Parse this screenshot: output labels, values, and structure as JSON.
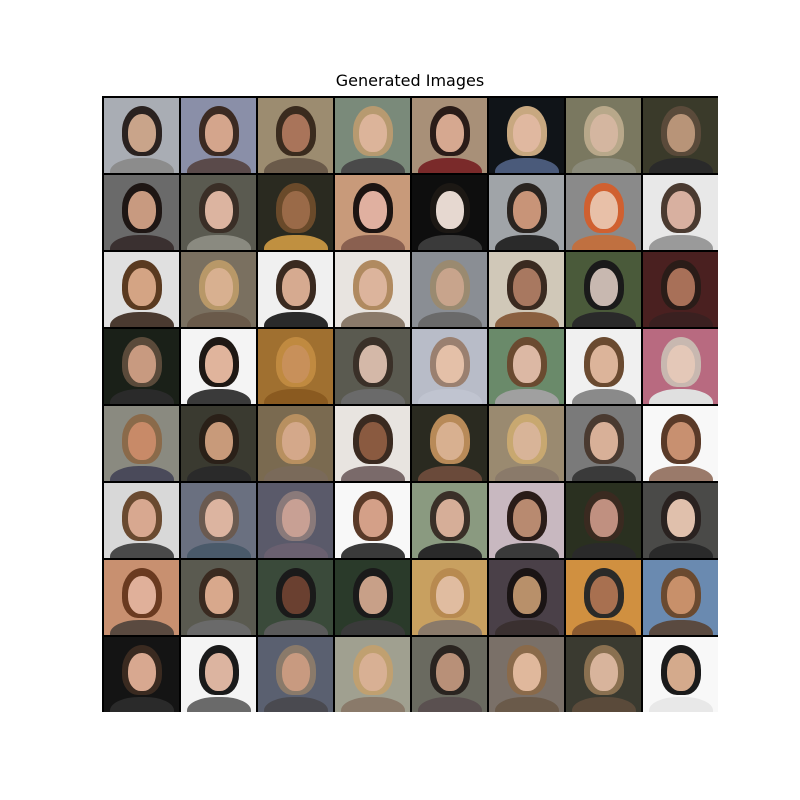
{
  "figure": {
    "title": "Generated Images"
  },
  "grid": {
    "rows": 8,
    "cols": 8,
    "tiles": [
      {
        "bg": "#a9adb4",
        "hair": "#2a2220",
        "skin": "#c9a48a",
        "cloth": "#8c8c8c"
      },
      {
        "bg": "#8a8fa8",
        "hair": "#3b2a22",
        "skin": "#d4a58c",
        "cloth": "#5a4a4a"
      },
      {
        "bg": "#9c8c70",
        "hair": "#3a2b1e",
        "skin": "#a9745a",
        "cloth": "#6a5a4a"
      },
      {
        "bg": "#7a8a7a",
        "hair": "#b79a70",
        "skin": "#dcb49a",
        "cloth": "#4a4a4a"
      },
      {
        "bg": "#a89078",
        "hair": "#2a1c18",
        "skin": "#d6a890",
        "cloth": "#7a2a2a"
      },
      {
        "bg": "#101418",
        "hair": "#c8a880",
        "skin": "#e0b8a0",
        "cloth": "#4a5a7a"
      },
      {
        "bg": "#7a7860",
        "hair": "#b8a88a",
        "skin": "#d4b6a0",
        "cloth": "#8a8a7a"
      },
      {
        "bg": "#3a3a2a",
        "hair": "#5a4a3a",
        "skin": "#b89478",
        "cloth": "#2a2a2a"
      },
      {
        "bg": "#6a6a6a",
        "hair": "#1e1614",
        "skin": "#c89a80",
        "cloth": "#3a3030"
      },
      {
        "bg": "#5a5a50",
        "hair": "#3a2e26",
        "skin": "#dcb4a0",
        "cloth": "#8a8a80"
      },
      {
        "bg": "#2a2a20",
        "hair": "#6a4a2a",
        "skin": "#9a6a48",
        "cloth": "#c09040"
      },
      {
        "bg": "#c89a7a",
        "hair": "#1c1412",
        "skin": "#e0b0a0",
        "cloth": "#8a6050"
      },
      {
        "bg": "#0e0e0e",
        "hair": "#1c1814",
        "skin": "#e6d8d0",
        "cloth": "#3a3a3a"
      },
      {
        "bg": "#a0a4a8",
        "hair": "#2a2420",
        "skin": "#c89478",
        "cloth": "#2a2a2a"
      },
      {
        "bg": "#8a8a8a",
        "hair": "#d06030",
        "skin": "#e8c0a8",
        "cloth": "#c07040"
      },
      {
        "bg": "#e8e8e8",
        "hair": "#4a3a30",
        "skin": "#d8b0a0",
        "cloth": "#9a9a9a"
      },
      {
        "bg": "#e0e0e0",
        "hair": "#5a3a20",
        "skin": "#d4a484",
        "cloth": "#4a3a30"
      },
      {
        "bg": "#7a7060",
        "hair": "#b89868",
        "skin": "#d8b090",
        "cloth": "#6a5a4a"
      },
      {
        "bg": "#f0f0f0",
        "hair": "#3a2a20",
        "skin": "#d6aa90",
        "cloth": "#2a2a2a"
      },
      {
        "bg": "#e8e4e0",
        "hair": "#b08a60",
        "skin": "#dcb49c",
        "cloth": "#8a7a6a"
      },
      {
        "bg": "#8a8e94",
        "hair": "#9a8a70",
        "skin": "#c8a48c",
        "cloth": "#6a6a6a"
      },
      {
        "bg": "#d0c8b8",
        "hair": "#3a2a20",
        "skin": "#a87860",
        "cloth": "#8a6040"
      },
      {
        "bg": "#4a5a3a",
        "hair": "#1a1a1a",
        "skin": "#c8b8b0",
        "cloth": "#2a2a2a"
      },
      {
        "bg": "#4a2020",
        "hair": "#2a1c18",
        "skin": "#a87058",
        "cloth": "#3a2020"
      },
      {
        "bg": "#1a2018",
        "hair": "#5a4a3a",
        "skin": "#c89a80",
        "cloth": "#2a2a2a"
      },
      {
        "bg": "#f4f4f4",
        "hair": "#1e1814",
        "skin": "#e0b49c",
        "cloth": "#3a3a3a"
      },
      {
        "bg": "#a07030",
        "hair": "#c08a40",
        "skin": "#c8905a",
        "cloth": "#8a5a20"
      },
      {
        "bg": "#5a5a50",
        "hair": "#3a3028",
        "skin": "#d4b8a8",
        "cloth": "#6a6a6a"
      },
      {
        "bg": "#b8bcc8",
        "hair": "#9a8070",
        "skin": "#e4c0a8",
        "cloth": "#c0c4d0"
      },
      {
        "bg": "#6a8a6a",
        "hair": "#6a4a30",
        "skin": "#dcb8a4",
        "cloth": "#a0a0a0"
      },
      {
        "bg": "#f0f0f0",
        "hair": "#6a4a30",
        "skin": "#dcb49a",
        "cloth": "#8a8a8a"
      },
      {
        "bg": "#b86a80",
        "hair": "#c8b8b0",
        "skin": "#e4c8b8",
        "cloth": "#e0e0e0"
      },
      {
        "bg": "#8a8a80",
        "hair": "#8a6a4a",
        "skin": "#c88a68",
        "cloth": "#4a4a5a"
      },
      {
        "bg": "#3a3a30",
        "hair": "#2a2018",
        "skin": "#c89a7a",
        "cloth": "#2a2a2a"
      },
      {
        "bg": "#7a6a50",
        "hair": "#b89060",
        "skin": "#d4a88a",
        "cloth": "#7a6a5a"
      },
      {
        "bg": "#e8e4e0",
        "hair": "#3a2a20",
        "skin": "#8a5a40",
        "cloth": "#7a6a6a"
      },
      {
        "bg": "#2a2a20",
        "hair": "#b88a58",
        "skin": "#d8b090",
        "cloth": "#6a4a3a"
      },
      {
        "bg": "#9a8a70",
        "hair": "#c8a870",
        "skin": "#d8b498",
        "cloth": "#8a7a6a"
      },
      {
        "bg": "#7a7a7a",
        "hair": "#4a3a30",
        "skin": "#d8b098",
        "cloth": "#3a3a3a"
      },
      {
        "bg": "#f8f8f8",
        "hair": "#5a3a28",
        "skin": "#c89070",
        "cloth": "#9a7a6a"
      },
      {
        "bg": "#d8d8d8",
        "hair": "#6a4a30",
        "skin": "#d8a890",
        "cloth": "#4a4a4a"
      },
      {
        "bg": "#6a7080",
        "hair": "#6a5a50",
        "skin": "#dcb4a0",
        "cloth": "#4a5a6a"
      },
      {
        "bg": "#5a5a6a",
        "hair": "#8a7a7a",
        "skin": "#c8a094",
        "cloth": "#6a6070"
      },
      {
        "bg": "#f8f8f8",
        "hair": "#5a3a28",
        "skin": "#d4a088",
        "cloth": "#3a3a3a"
      },
      {
        "bg": "#8a9a80",
        "hair": "#3a3028",
        "skin": "#d6ae98",
        "cloth": "#2a2a2a"
      },
      {
        "bg": "#c8b8c0",
        "hair": "#2a1c18",
        "skin": "#b88a70",
        "cloth": "#3a3a3a"
      },
      {
        "bg": "#2a3020",
        "hair": "#3a2a20",
        "skin": "#c09080",
        "cloth": "#2a2a2a"
      },
      {
        "bg": "#4a4a48",
        "hair": "#2a2220",
        "skin": "#e0c0ac",
        "cloth": "#2a2a2a"
      },
      {
        "bg": "#c89070",
        "hair": "#6a3a20",
        "skin": "#e0b09a",
        "cloth": "#5a4a40"
      },
      {
        "bg": "#5a5a50",
        "hair": "#3a2a20",
        "skin": "#d8a88c",
        "cloth": "#6a6a6a"
      },
      {
        "bg": "#3a4a3a",
        "hair": "#1a1a1a",
        "skin": "#6a4030",
        "cloth": "#5a5a5a"
      },
      {
        "bg": "#2a3a2a",
        "hair": "#1a1a1a",
        "skin": "#c8a088",
        "cloth": "#3a3a3a"
      },
      {
        "bg": "#c8a060",
        "hair": "#b88a50",
        "skin": "#e0bca0",
        "cloth": "#8a7a6a"
      },
      {
        "bg": "#4a4048",
        "hair": "#1a1414",
        "skin": "#b8906a",
        "cloth": "#3a3030"
      },
      {
        "bg": "#d09040",
        "hair": "#2a2a28",
        "skin": "#a87050",
        "cloth": "#8a5a30"
      },
      {
        "bg": "#6a8ab0",
        "hair": "#6a4a30",
        "skin": "#c8906a",
        "cloth": "#5a4a40"
      },
      {
        "bg": "#141414",
        "hair": "#3a2a20",
        "skin": "#d8a890",
        "cloth": "#2a2a2a"
      },
      {
        "bg": "#f4f4f4",
        "hair": "#1a1a1a",
        "skin": "#dcb4a0",
        "cloth": "#6a6a6a"
      },
      {
        "bg": "#5a6070",
        "hair": "#8a7a6a",
        "skin": "#c89a80",
        "cloth": "#4a4a50"
      },
      {
        "bg": "#a0a090",
        "hair": "#c0a070",
        "skin": "#d8b094",
        "cloth": "#8a7a6a"
      },
      {
        "bg": "#6a6a60",
        "hair": "#2a2420",
        "skin": "#b89078",
        "cloth": "#5a5050"
      },
      {
        "bg": "#7a7068",
        "hair": "#8a6a4a",
        "skin": "#e0b89c",
        "cloth": "#6a5a4a"
      },
      {
        "bg": "#3a3a30",
        "hair": "#8a7050",
        "skin": "#d8b49c",
        "cloth": "#5a4a3a"
      },
      {
        "bg": "#f8f8f8",
        "hair": "#1a1a1a",
        "skin": "#d4aa8c",
        "cloth": "#e8e8e8"
      }
    ]
  }
}
